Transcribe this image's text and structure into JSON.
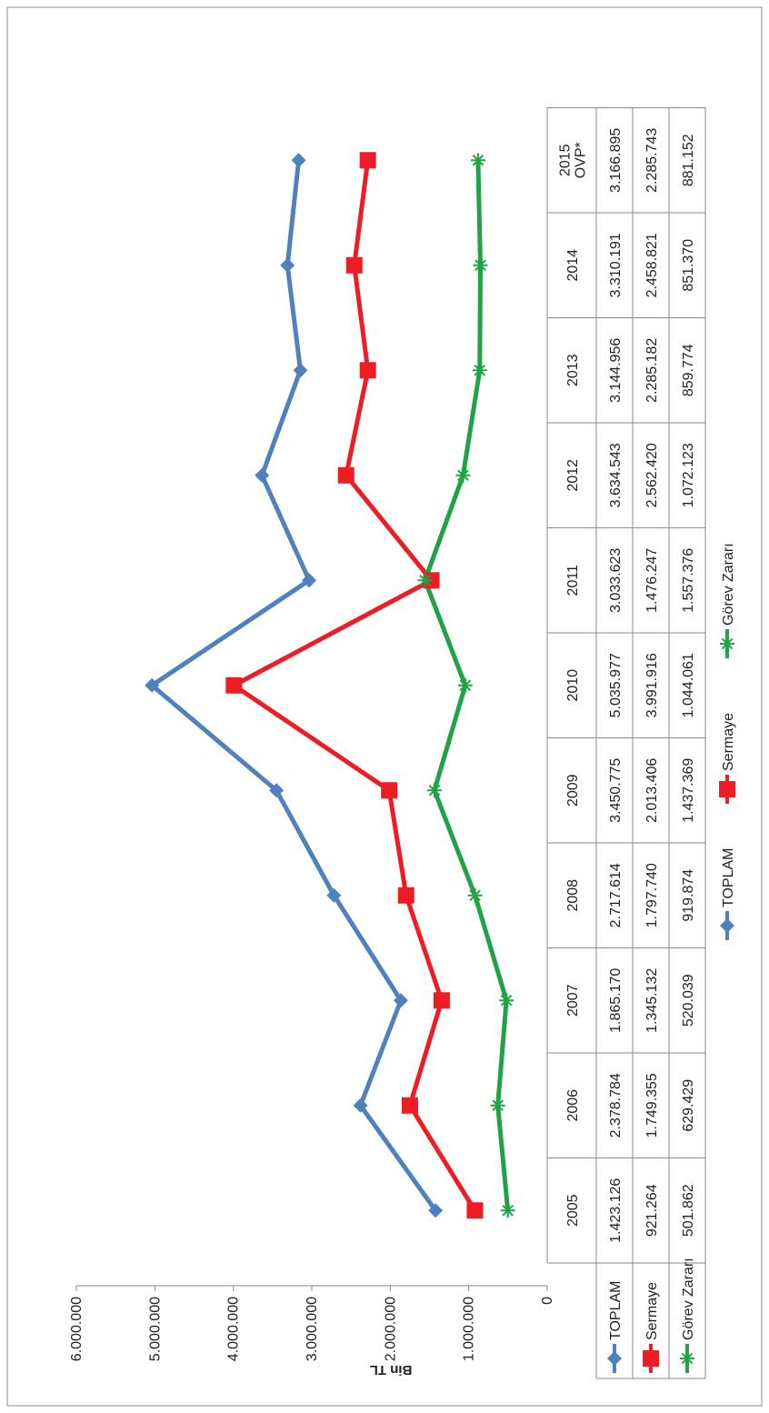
{
  "chart_data": {
    "type": "line",
    "ylabel": "Bin TL",
    "categories": [
      "2005",
      "2006",
      "2007",
      "2008",
      "2009",
      "2010",
      "2011",
      "2012",
      "2013",
      "2014",
      "2015 OVP*"
    ],
    "category_lines": [
      [
        "2005"
      ],
      [
        "2006"
      ],
      [
        "2007"
      ],
      [
        "2008"
      ],
      [
        "2009"
      ],
      [
        "2010"
      ],
      [
        "2011"
      ],
      [
        "2012"
      ],
      [
        "2013"
      ],
      [
        "2014"
      ],
      [
        "2015",
        "OVP*"
      ]
    ],
    "ylim": [
      0,
      6000000
    ],
    "yticks": [
      0,
      1000000,
      2000000,
      3000000,
      4000000,
      5000000,
      6000000
    ],
    "ytick_labels": [
      "0",
      "1.000.000",
      "2.000.000",
      "3.000.000",
      "4.000.000",
      "5.000.000",
      "6.000.000"
    ],
    "grid": false,
    "legend_position": "bottom",
    "series": [
      {
        "name": "TOPLAM",
        "color": "#4F81BD",
        "marker": "diamond",
        "values": [
          1423126,
          2378784,
          1865170,
          2717614,
          3450775,
          5035977,
          3033623,
          3634543,
          3144956,
          3310191,
          3166895
        ],
        "labels": [
          "1.423.126",
          "2.378.784",
          "1.865.170",
          "2.717.614",
          "3.450.775",
          "5.035.977",
          "3.033.623",
          "3.634.543",
          "3.144.956",
          "3.310.191",
          "3.166.895"
        ]
      },
      {
        "name": "Sermaye",
        "color": "#EE1C25",
        "marker": "square",
        "values": [
          921264,
          1749355,
          1345132,
          1797740,
          2013406,
          3991916,
          1476247,
          2562420,
          2285182,
          2458821,
          2285743
        ],
        "labels": [
          "921.264",
          "1.749.355",
          "1.345.132",
          "1.797.740",
          "2.013.406",
          "3.991.916",
          "1.476.247",
          "2.562.420",
          "2.285.182",
          "2.458.821",
          "2.285.743"
        ]
      },
      {
        "name": "Görev Zararı",
        "color": "#1FA345",
        "marker": "asterisk",
        "values": [
          501862,
          629429,
          520039,
          919874,
          1437369,
          1044061,
          1557376,
          1072123,
          859774,
          851370,
          881152
        ],
        "labels": [
          "501.862",
          "629.429",
          "520.039",
          "919.874",
          "1.437.369",
          "1.044.061",
          "1.557.376",
          "1.072.123",
          "859.774",
          "851.370",
          "881.152"
        ]
      }
    ]
  }
}
